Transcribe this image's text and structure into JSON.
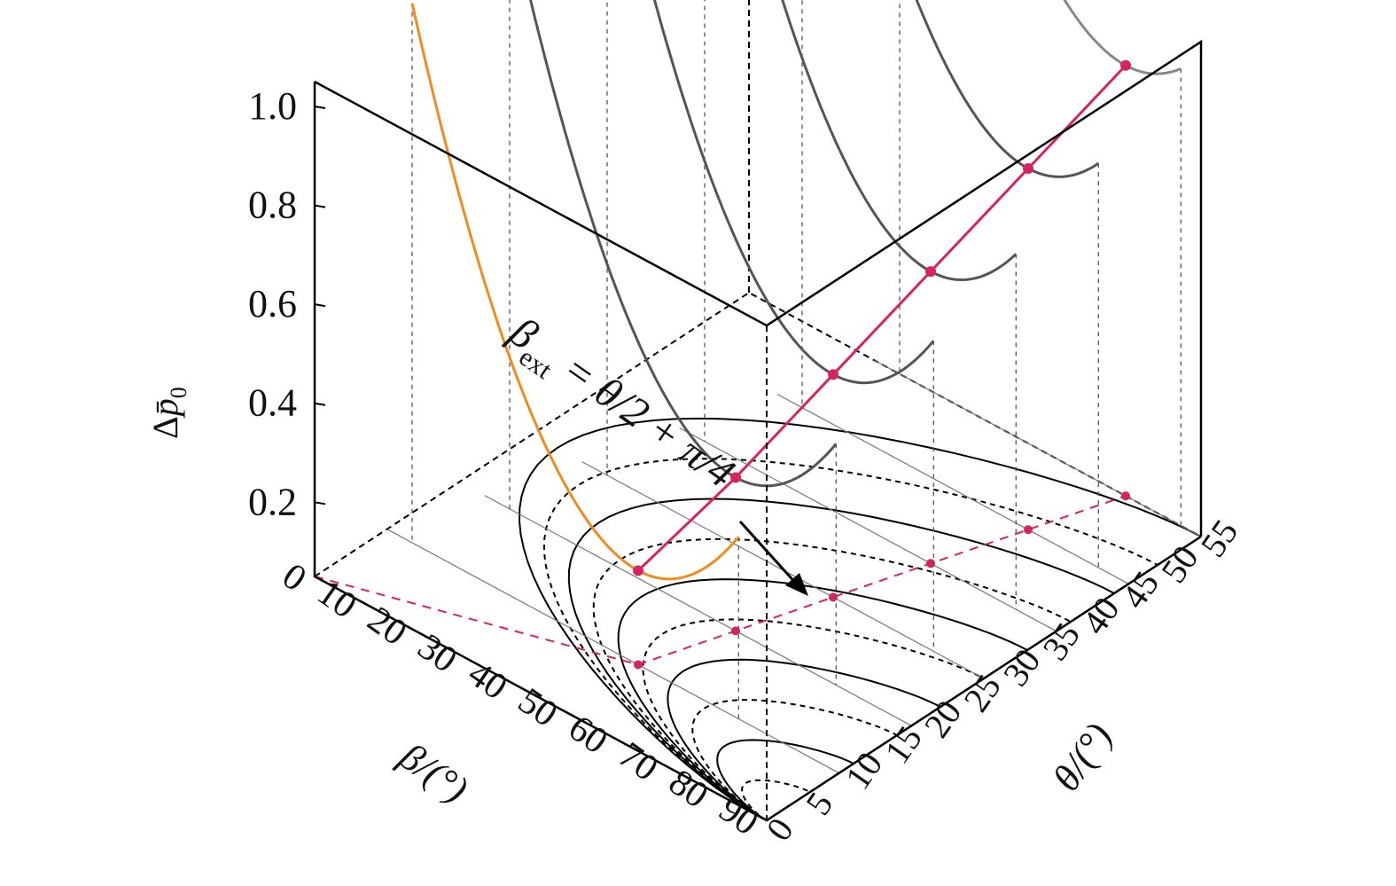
{
  "chart_data": {
    "type": "line",
    "axes": {
      "beta": {
        "label": "β/(°)",
        "ticks": [
          "0",
          "10",
          "20",
          "30",
          "40",
          "50",
          "60",
          "70",
          "80",
          "90"
        ],
        "range": [
          0,
          90
        ]
      },
      "theta": {
        "label": "θ/(°)",
        "ticks": [
          "0",
          "5",
          "10",
          "15",
          "20",
          "25",
          "30",
          "35",
          "40",
          "45",
          "50",
          "55"
        ],
        "range": [
          0,
          55
        ]
      },
      "z": {
        "label_main": "Δ",
        "label_var": "p̄",
        "label_sub": "0",
        "ticks": [
          "0.2",
          "0.4",
          "0.6",
          "0.8",
          "1.0"
        ],
        "range": [
          0.05,
          1.0
        ]
      }
    },
    "annotation": {
      "beta_sym": "β",
      "beta_sub": "ext",
      "expr": " = θ/2 + π/4"
    },
    "series": [
      {
        "theta": 10,
        "beta_range": [
          5,
          70
        ],
        "z_at_min": 0.24,
        "color": "#f28b1e"
      },
      {
        "theta": 20,
        "beta_range": [
          10,
          75
        ],
        "z_at_min": 0.36,
        "color": "#555555"
      },
      {
        "theta": 30,
        "beta_range": [
          15,
          80
        ],
        "z_at_min": 0.5,
        "color": "#555555"
      },
      {
        "theta": 40,
        "beta_range": [
          20,
          82
        ],
        "z_at_min": 0.64,
        "color": "#555555"
      },
      {
        "theta": 50,
        "beta_range": [
          25,
          84
        ],
        "z_at_min": 0.78,
        "color": "#555555"
      },
      {
        "theta": 60,
        "beta_range": [
          30,
          86
        ],
        "z_at_min": 0.92,
        "color": "#888888"
      }
    ],
    "optimum_points": [
      {
        "theta": 10,
        "beta": 50,
        "z": 0.24
      },
      {
        "theta": 20,
        "beta": 55,
        "z": 0.36
      },
      {
        "theta": 30,
        "beta": 60,
        "z": 0.5
      },
      {
        "theta": 40,
        "beta": 65,
        "z": 0.64
      },
      {
        "theta": 50,
        "beta": 70,
        "z": 0.78
      },
      {
        "theta": 60,
        "beta": 75,
        "z": 0.92
      }
    ],
    "floor_contours": {
      "count": 10,
      "style": "alternating solid/dashed"
    },
    "colors": {
      "optimum": "#d6245c",
      "highlight_curve": "#f28b1e",
      "lines": "#000000"
    }
  }
}
